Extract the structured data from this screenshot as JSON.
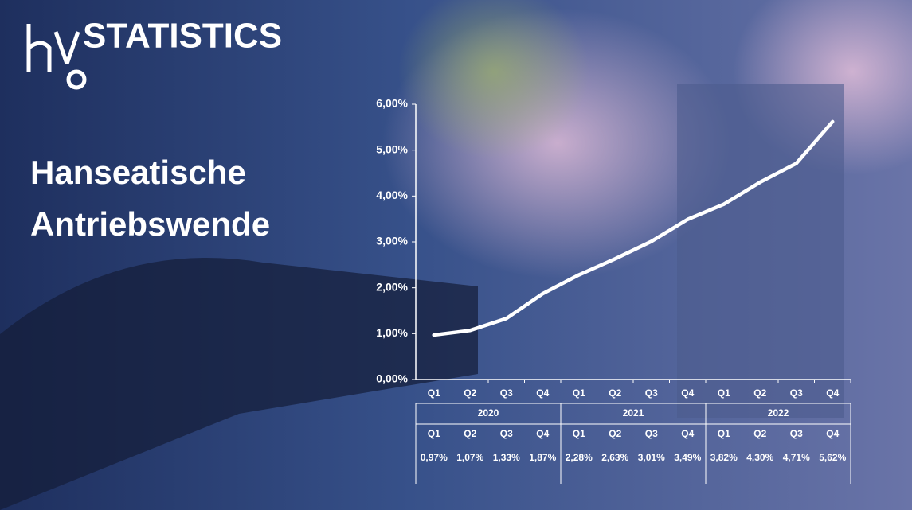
{
  "brand": {
    "logo": "hy",
    "name": "STATISTICS"
  },
  "headline": [
    "Hanseatische",
    "Antriebswende"
  ],
  "chart_data": {
    "type": "line",
    "categories": [
      "Q1",
      "Q2",
      "Q3",
      "Q4",
      "Q1",
      "Q2",
      "Q3",
      "Q4",
      "Q1",
      "Q2",
      "Q3",
      "Q4"
    ],
    "years": [
      "2020",
      "2021",
      "2022"
    ],
    "series": [
      {
        "color": "#ffffff",
        "values": [
          0.97,
          1.07,
          1.33,
          1.87,
          2.28,
          2.63,
          3.01,
          3.49,
          3.82,
          4.3,
          4.71,
          5.62
        ],
        "value_labels": [
          "0,97%",
          "1,07%",
          "1,33%",
          "1,87%",
          "2,28%",
          "2,63%",
          "3,01%",
          "3,49%",
          "3,82%",
          "4,30%",
          "4,71%",
          "5,62%"
        ]
      }
    ],
    "ylim": [
      0,
      6
    ],
    "yticks": [
      {
        "value": 0,
        "label": "0,00%"
      },
      {
        "value": 1,
        "label": "1,00%"
      },
      {
        "value": 2,
        "label": "2,00%"
      },
      {
        "value": 3,
        "label": "3,00%"
      },
      {
        "value": 4,
        "label": "4,00%"
      },
      {
        "value": 5,
        "label": "5,00%"
      },
      {
        "value": 6,
        "label": "6,00%"
      }
    ]
  }
}
